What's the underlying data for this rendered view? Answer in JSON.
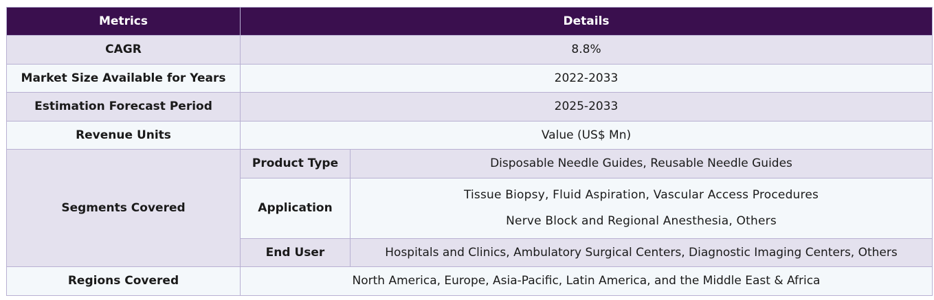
{
  "header": {
    "metrics": "Metrics",
    "details": "Details"
  },
  "rows": {
    "cagr": {
      "label": "CAGR",
      "value": "8.8%"
    },
    "market_size": {
      "label": "Market Size Available for Years",
      "value": "2022-2033"
    },
    "forecast": {
      "label": "Estimation Forecast Period",
      "value": "2025-2033"
    },
    "revenue_units": {
      "label": "Revenue Units",
      "value": "Value (US$ Mn)"
    }
  },
  "segments": {
    "label": "Segments Covered",
    "product_type": {
      "label": "Product Type",
      "value": "Disposable Needle Guides, Reusable Needle Guides"
    },
    "application": {
      "label": "Application",
      "lines": [
        "Tissue Biopsy, Fluid Aspiration, Vascular Access Procedures",
        "Nerve Block and Regional Anesthesia, Others"
      ]
    },
    "end_user": {
      "label": "End User",
      "value": "Hospitals and Clinics, Ambulatory Surgical Centers, Diagnostic Imaging Centers, Others"
    }
  },
  "regions": {
    "label": "Regions Covered",
    "value": "North America, Europe, Asia-Pacific, Latin America, and the Middle East & Africa"
  },
  "colors": {
    "header_bg": "#3a0f4e",
    "row_shaded": "#e4e1ee",
    "row_plain": "#f4f8fb",
    "border": "#b8b0d2"
  }
}
